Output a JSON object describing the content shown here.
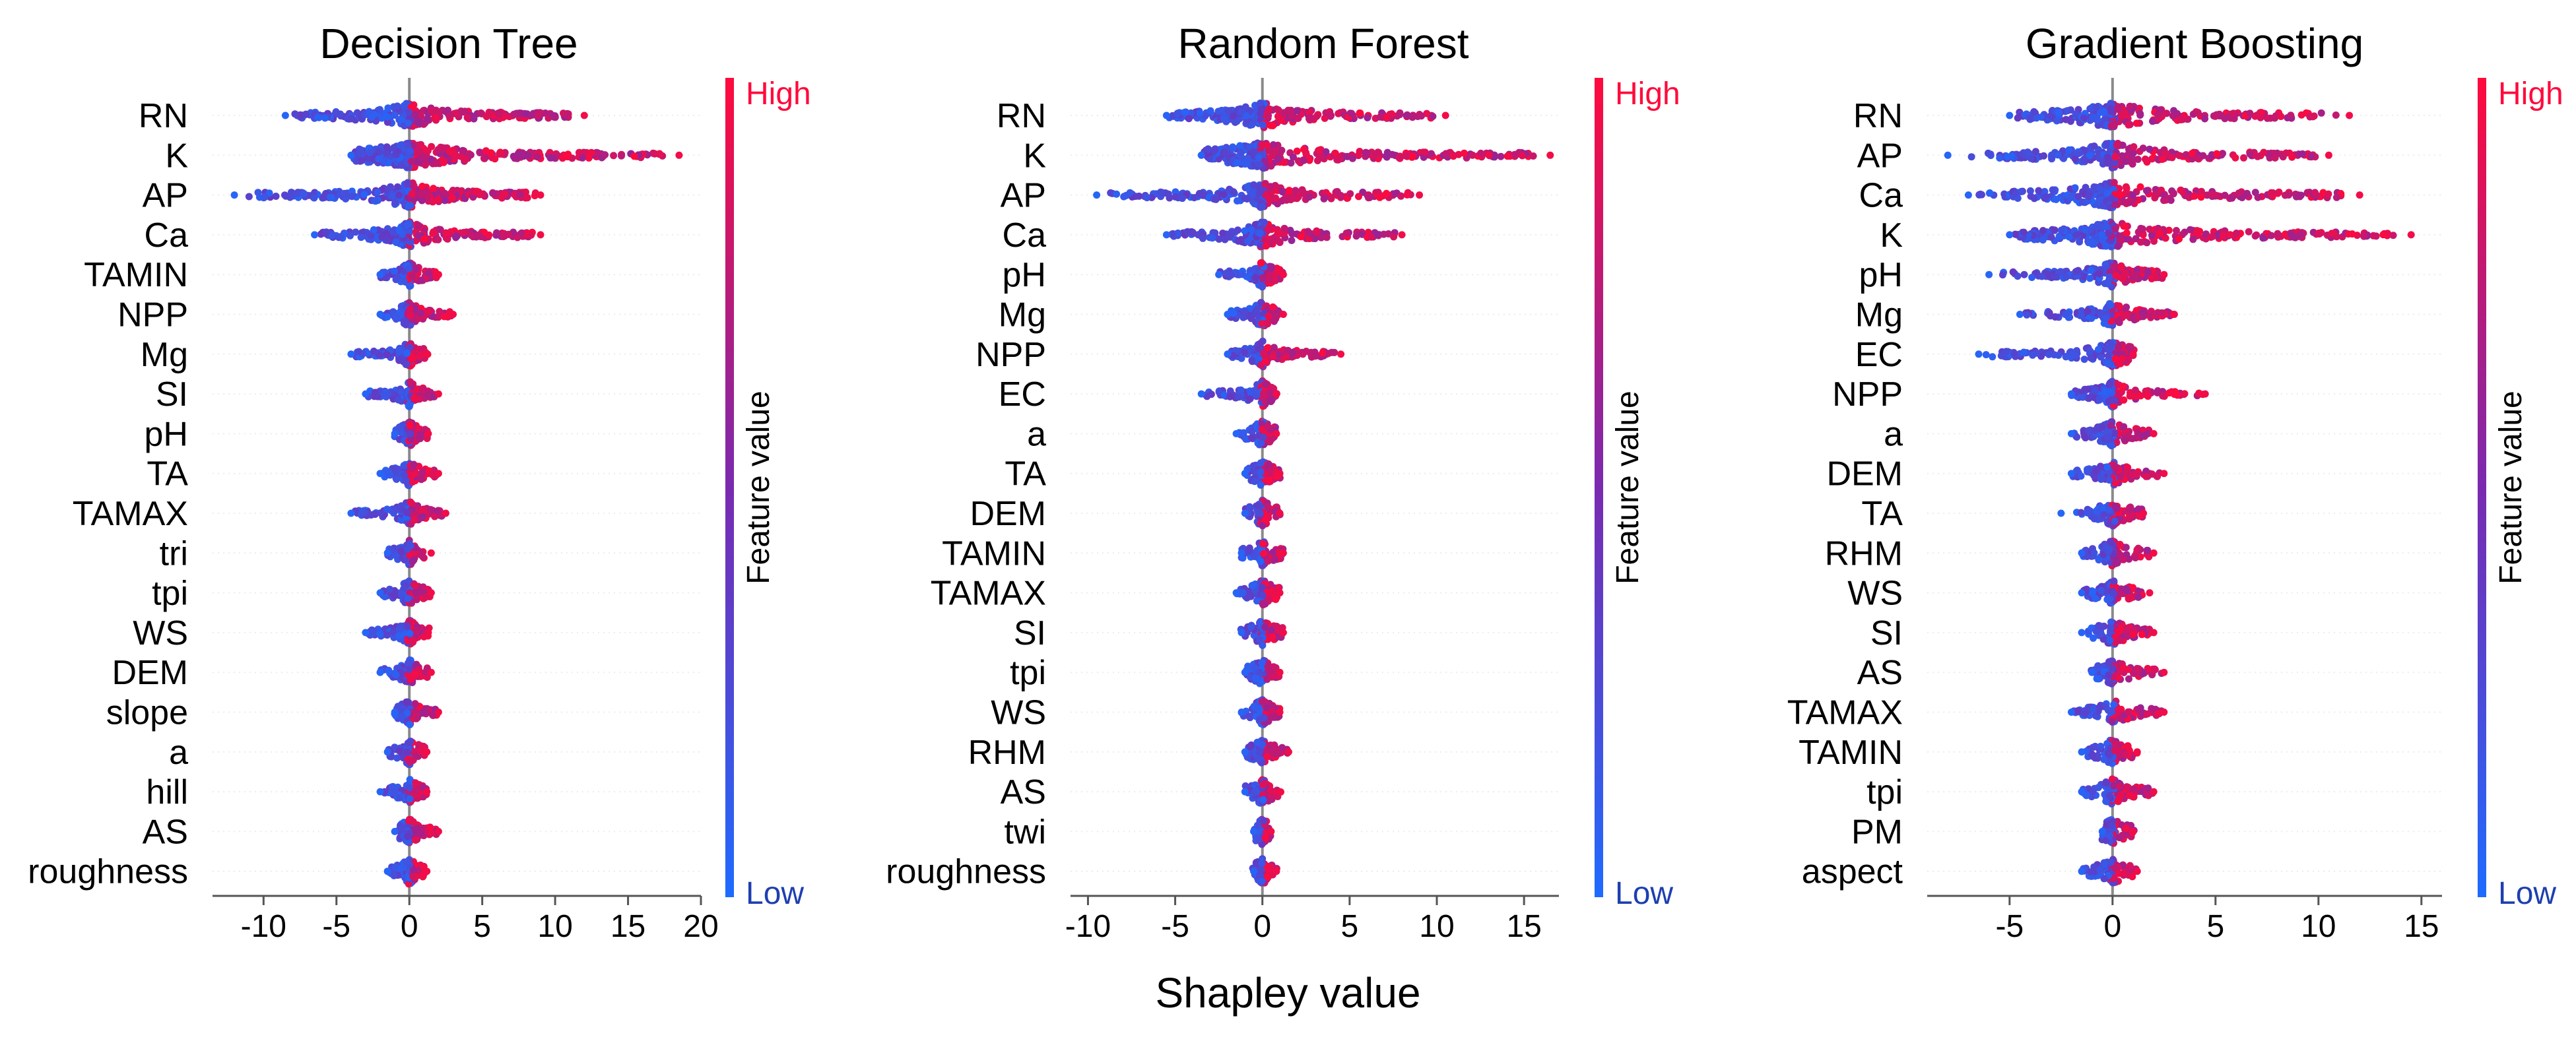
{
  "figure": {
    "xlabel": "Shapley value"
  },
  "colors": {
    "low": "#1E6BFF",
    "high": "#FF0A3C",
    "zero_line": "#8a8a8a",
    "grid": "#ececec",
    "axis": "#555555"
  },
  "chart_data": [
    {
      "type": "scatter",
      "subtype": "shap-beeswarm",
      "title": "Decision Tree",
      "xlabel": "Shapley value",
      "xlim": [
        -13.5,
        20
      ],
      "xticks": [
        -10,
        -5,
        0,
        5,
        10,
        15,
        20
      ],
      "xtick_labels": [
        "-10",
        "-5",
        "0",
        "5",
        "10",
        "15",
        "20"
      ],
      "colorbar": {
        "label": "Feature value",
        "high": "High",
        "low": "Low"
      },
      "features": [
        {
          "name": "RN",
          "neg_min": -8.5,
          "pos_max": 12
        },
        {
          "name": "K",
          "neg_min": -4,
          "pos_max": 18.5
        },
        {
          "name": "AP",
          "neg_min": -12,
          "pos_max": 9
        },
        {
          "name": "Ca",
          "neg_min": -6.5,
          "pos_max": 9
        },
        {
          "name": "TAMIN",
          "neg_min": -2,
          "pos_max": 2
        },
        {
          "name": "NPP",
          "neg_min": -2,
          "pos_max": 3
        },
        {
          "name": "Mg",
          "neg_min": -4,
          "pos_max": 1.2
        },
        {
          "name": "SI",
          "neg_min": -3,
          "pos_max": 2
        },
        {
          "name": "pH",
          "neg_min": -1,
          "pos_max": 1.3
        },
        {
          "name": "TA",
          "neg_min": -2,
          "pos_max": 2
        },
        {
          "name": "TAMAX",
          "neg_min": -4,
          "pos_max": 2.5
        },
        {
          "name": "tri",
          "neg_min": -1.5,
          "pos_max": 1.5
        },
        {
          "name": "tpi",
          "neg_min": -2,
          "pos_max": 1.5
        },
        {
          "name": "WS",
          "neg_min": -3,
          "pos_max": 1.3
        },
        {
          "name": "DEM",
          "neg_min": -2,
          "pos_max": 1.5
        },
        {
          "name": "slope",
          "neg_min": -1,
          "pos_max": 2
        },
        {
          "name": "a",
          "neg_min": -1.5,
          "pos_max": 1.2
        },
        {
          "name": "hill",
          "neg_min": -2,
          "pos_max": 1.2
        },
        {
          "name": "AS",
          "neg_min": -1,
          "pos_max": 2
        },
        {
          "name": "roughness",
          "neg_min": -1.5,
          "pos_max": 1.2
        }
      ]
    },
    {
      "type": "scatter",
      "subtype": "shap-beeswarm",
      "title": "Random Forest",
      "xlabel": "Shapley value",
      "xlim": [
        -11,
        17
      ],
      "xticks": [
        -10,
        -5,
        0,
        5,
        10,
        15
      ],
      "xtick_labels": [
        "-10",
        "-5",
        "0",
        "5",
        "10",
        "15"
      ],
      "colorbar": {
        "label": "Feature value",
        "high": "High",
        "low": "Low"
      },
      "features": [
        {
          "name": "RN",
          "neg_min": -5.5,
          "pos_max": 10.5
        },
        {
          "name": "K",
          "neg_min": -3.5,
          "pos_max": 16.5
        },
        {
          "name": "AP",
          "neg_min": -9.5,
          "pos_max": 9
        },
        {
          "name": "Ca",
          "neg_min": -5.5,
          "pos_max": 8
        },
        {
          "name": "pH",
          "neg_min": -2.5,
          "pos_max": 1.2
        },
        {
          "name": "Mg",
          "neg_min": -2,
          "pos_max": 1.2
        },
        {
          "name": "NPP",
          "neg_min": -2,
          "pos_max": 4.5
        },
        {
          "name": "EC",
          "neg_min": -3.5,
          "pos_max": 0.8
        },
        {
          "name": "a",
          "neg_min": -1.5,
          "pos_max": 0.8
        },
        {
          "name": "TA",
          "neg_min": -1,
          "pos_max": 1
        },
        {
          "name": "DEM",
          "neg_min": -1,
          "pos_max": 1
        },
        {
          "name": "TAMIN",
          "neg_min": -1.2,
          "pos_max": 1.2
        },
        {
          "name": "TAMAX",
          "neg_min": -1.5,
          "pos_max": 1
        },
        {
          "name": "SI",
          "neg_min": -1.2,
          "pos_max": 1.2
        },
        {
          "name": "tpi",
          "neg_min": -1,
          "pos_max": 1
        },
        {
          "name": "WS",
          "neg_min": -1.2,
          "pos_max": 1
        },
        {
          "name": "RHM",
          "neg_min": -1,
          "pos_max": 1.5
        },
        {
          "name": "AS",
          "neg_min": -1,
          "pos_max": 1
        },
        {
          "name": "twi",
          "neg_min": -0.5,
          "pos_max": 0.5
        },
        {
          "name": "roughness",
          "neg_min": -0.5,
          "pos_max": 0.8
        }
      ]
    },
    {
      "type": "scatter",
      "subtype": "shap-beeswarm",
      "title": "Gradient Boosting",
      "xlabel": "Shapley value",
      "xlim": [
        -9,
        16
      ],
      "xticks": [
        -5,
        0,
        5,
        10,
        15
      ],
      "xtick_labels": [
        "-5",
        "0",
        "5",
        "10",
        "15"
      ],
      "colorbar": {
        "label": "Feature value",
        "high": "High",
        "low": "Low"
      },
      "features": [
        {
          "name": "RN",
          "neg_min": -5,
          "pos_max": 11.5
        },
        {
          "name": "AP",
          "neg_min": -8,
          "pos_max": 10.5
        },
        {
          "name": "Ca",
          "neg_min": -7,
          "pos_max": 12
        },
        {
          "name": "K",
          "neg_min": -5,
          "pos_max": 14.5
        },
        {
          "name": "pH",
          "neg_min": -6,
          "pos_max": 2.5
        },
        {
          "name": "Mg",
          "neg_min": -4.5,
          "pos_max": 3
        },
        {
          "name": "EC",
          "neg_min": -6.5,
          "pos_max": 1
        },
        {
          "name": "NPP",
          "neg_min": -2,
          "pos_max": 4.5
        },
        {
          "name": "a",
          "neg_min": -2,
          "pos_max": 2
        },
        {
          "name": "DEM",
          "neg_min": -2,
          "pos_max": 2.5
        },
        {
          "name": "TA",
          "neg_min": -2.5,
          "pos_max": 1.5
        },
        {
          "name": "RHM",
          "neg_min": -1.5,
          "pos_max": 2
        },
        {
          "name": "WS",
          "neg_min": -1.5,
          "pos_max": 1.8
        },
        {
          "name": "SI",
          "neg_min": -1.5,
          "pos_max": 2
        },
        {
          "name": "AS",
          "neg_min": -1,
          "pos_max": 2.5
        },
        {
          "name": "TAMAX",
          "neg_min": -2,
          "pos_max": 2.5
        },
        {
          "name": "TAMIN",
          "neg_min": -1.5,
          "pos_max": 1.2
        },
        {
          "name": "tpi",
          "neg_min": -1.5,
          "pos_max": 2
        },
        {
          "name": "PM",
          "neg_min": -0.5,
          "pos_max": 1
        },
        {
          "name": "aspect",
          "neg_min": -1.5,
          "pos_max": 1.2
        }
      ]
    }
  ]
}
